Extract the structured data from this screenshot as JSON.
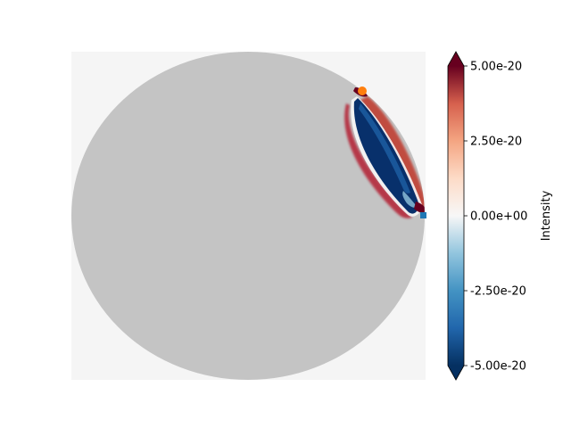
{
  "chart_data": {
    "type": "heatmap",
    "title": "",
    "xlabel": "",
    "ylabel": "",
    "colorbar": {
      "label": "Intensity",
      "colormap": "RdBu_r",
      "vmin": -5e-20,
      "vmax": 5e-20,
      "extend": "both",
      "ticks": [
        {
          "value": 5e-20,
          "label": "5.00e-20"
        },
        {
          "value": 2.5e-20,
          "label": "2.50e-20"
        },
        {
          "value": 0,
          "label": "0.00e+00"
        },
        {
          "value": -2.5e-20,
          "label": "-2.50e-20"
        },
        {
          "value": -5e-20,
          "label": "-5.00e-20"
        }
      ]
    },
    "markers": [
      {
        "name": "source",
        "color": "#ff7f0e",
        "shape": "circle"
      },
      {
        "name": "receiver",
        "color": "#1f77b4",
        "shape": "square"
      }
    ],
    "colors": {
      "background": "#f5f5f5",
      "disk": "#c4c4c4",
      "negative": "#08306b",
      "positive": "#67001f"
    }
  }
}
